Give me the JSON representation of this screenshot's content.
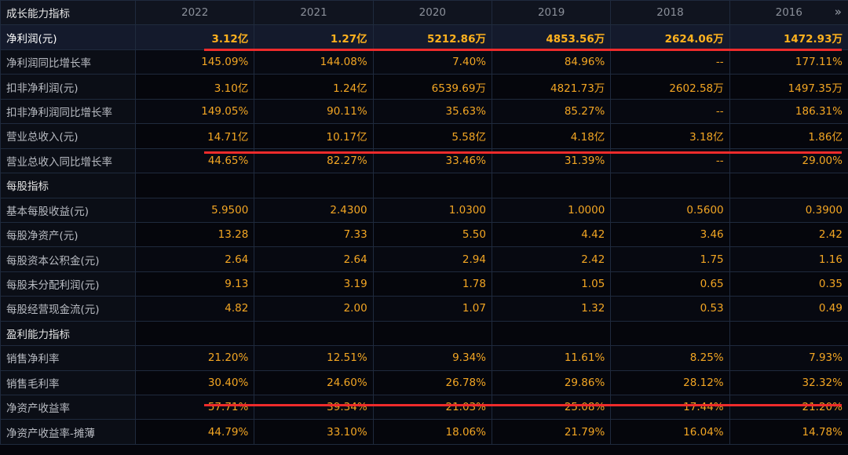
{
  "header": {
    "title": "成长能力指标",
    "years": [
      "2022",
      "2021",
      "2020",
      "2019",
      "2018",
      "2016"
    ],
    "more_icon": "double-chevron-right-icon"
  },
  "rows": [
    {
      "label": "净利润(元)",
      "values": [
        "3.12亿",
        "1.27亿",
        "5212.86万",
        "4853.56万",
        "2624.06万",
        "1472.93万"
      ]
    },
    {
      "label": "净利润同比增长率",
      "values": [
        "145.09%",
        "144.08%",
        "7.40%",
        "84.96%",
        "--",
        "177.11%"
      ]
    },
    {
      "label": "扣非净利润(元)",
      "values": [
        "3.10亿",
        "1.24亿",
        "6539.69万",
        "4821.73万",
        "2602.58万",
        "1497.35万"
      ]
    },
    {
      "label": "扣非净利润同比增长率",
      "values": [
        "149.05%",
        "90.11%",
        "35.63%",
        "85.27%",
        "--",
        "186.31%"
      ]
    },
    {
      "label": "营业总收入(元)",
      "values": [
        "14.71亿",
        "10.17亿",
        "5.58亿",
        "4.18亿",
        "3.18亿",
        "1.86亿"
      ]
    },
    {
      "label": "营业总收入同比增长率",
      "values": [
        "44.65%",
        "82.27%",
        "33.46%",
        "31.39%",
        "--",
        "29.00%"
      ]
    },
    {
      "label": "每股指标",
      "values": [
        "",
        "",
        "",
        "",
        "",
        ""
      ]
    },
    {
      "label": "基本每股收益(元)",
      "values": [
        "5.9500",
        "2.4300",
        "1.0300",
        "1.0000",
        "0.5600",
        "0.3900"
      ]
    },
    {
      "label": "每股净资产(元)",
      "values": [
        "13.28",
        "7.33",
        "5.50",
        "4.42",
        "3.46",
        "2.42"
      ]
    },
    {
      "label": "每股资本公积金(元)",
      "values": [
        "2.64",
        "2.64",
        "2.94",
        "2.42",
        "1.75",
        "1.16"
      ]
    },
    {
      "label": "每股未分配利润(元)",
      "values": [
        "9.13",
        "3.19",
        "1.78",
        "1.05",
        "0.65",
        "0.35"
      ]
    },
    {
      "label": "每股经营现金流(元)",
      "values": [
        "4.82",
        "2.00",
        "1.07",
        "1.32",
        "0.53",
        "0.49"
      ]
    },
    {
      "label": "盈利能力指标",
      "values": [
        "",
        "",
        "",
        "",
        "",
        ""
      ]
    },
    {
      "label": "销售净利率",
      "values": [
        "21.20%",
        "12.51%",
        "9.34%",
        "11.61%",
        "8.25%",
        "7.93%"
      ]
    },
    {
      "label": "销售毛利率",
      "values": [
        "30.40%",
        "24.60%",
        "26.78%",
        "29.86%",
        "28.12%",
        "32.32%"
      ]
    },
    {
      "label": "净资产收益率",
      "values": [
        "57.71%",
        "39.34%",
        "21.03%",
        "25.08%",
        "17.44%",
        "21.20%"
      ]
    },
    {
      "label": "净资产收益率-摊薄",
      "values": [
        "44.79%",
        "33.10%",
        "18.06%",
        "21.79%",
        "16.04%",
        "14.78%"
      ]
    }
  ],
  "colors": {
    "value": "#f3a623",
    "highlight_line": "#ee2b2b",
    "background": "#05060c"
  }
}
